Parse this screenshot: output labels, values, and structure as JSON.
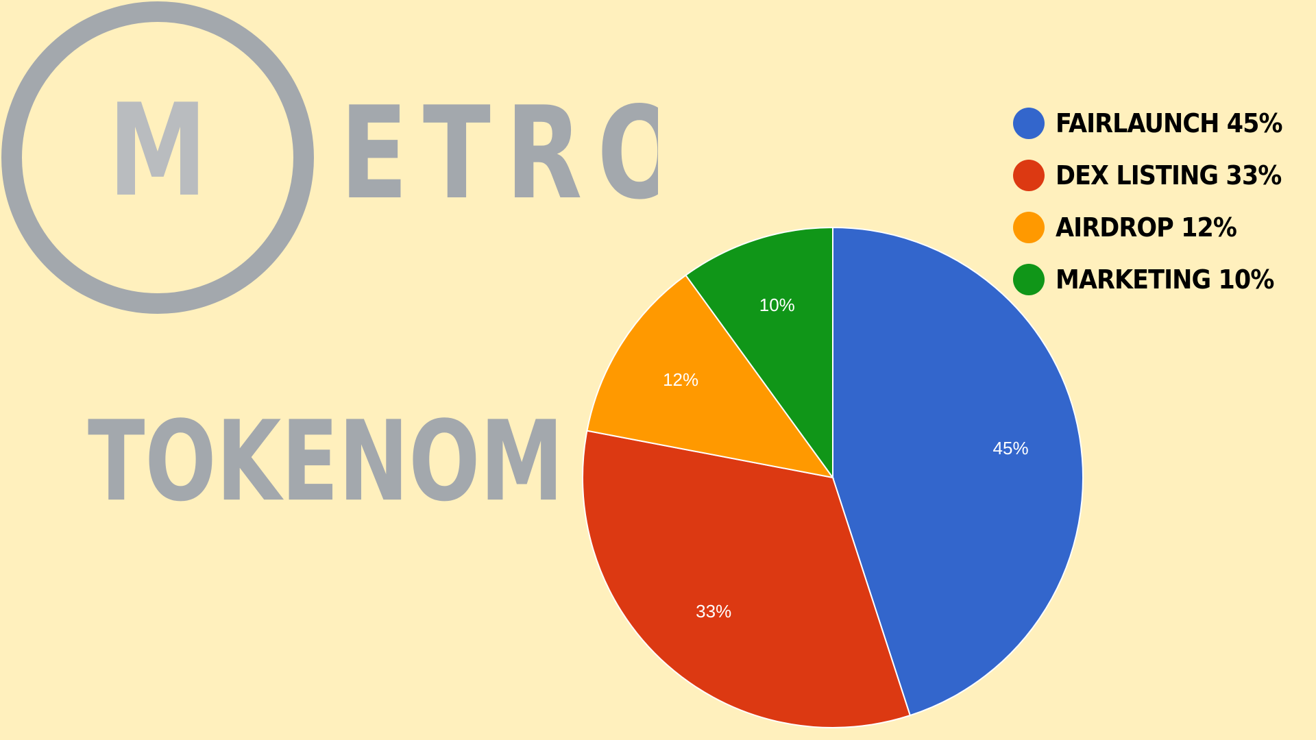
{
  "logo": {
    "letter": "M",
    "wordmark_rest": "ETRO",
    "color": "#a3a8ad",
    "letter_color": "#b9bcbf"
  },
  "heading": {
    "text": "TOKENOMIC:"
  },
  "chart_data": {
    "type": "pie",
    "categories": [
      "FAIRLAUNCH",
      "DEX LISTING",
      "AIRDROP",
      "MARKETING"
    ],
    "values": [
      45,
      33,
      12,
      10
    ],
    "unit": "%",
    "slice_labels": [
      "45%",
      "33%",
      "12%",
      "10%"
    ],
    "colors": [
      "#3366cc",
      "#dc3912",
      "#ff9900",
      "#109618"
    ],
    "legend": {
      "placement": "top-right",
      "entries": [
        "FAIRLAUNCH 45%",
        "DEX LISTING 33%",
        "AIRDROP 12%",
        "MARKETING 10%"
      ]
    },
    "start_angle_deg": 0,
    "direction": "clockwise"
  }
}
